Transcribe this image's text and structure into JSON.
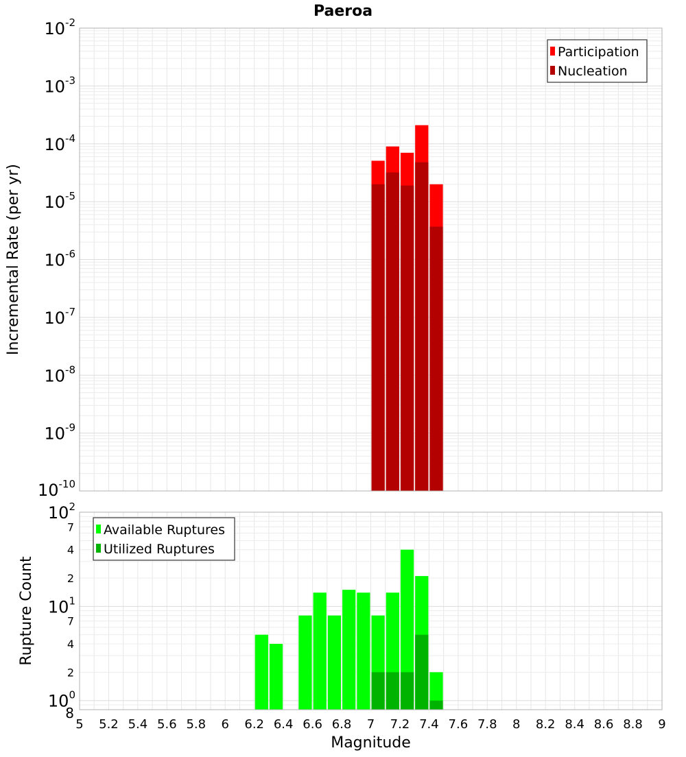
{
  "chart_data": [
    {
      "type": "bar",
      "title": "Paeroa",
      "xlabel": "",
      "ylabel": "Incremental Rate (per yr)",
      "yscale": "log",
      "ylim": [
        1e-10,
        0.01
      ],
      "xlim": [
        5,
        9
      ],
      "y_ticks": [
        {
          "base": "10",
          "exp": "-10",
          "value": 1e-10
        },
        {
          "base": "10",
          "exp": "-9",
          "value": 1e-09
        },
        {
          "base": "10",
          "exp": "-8",
          "value": 1e-08
        },
        {
          "base": "10",
          "exp": "-7",
          "value": 1e-07
        },
        {
          "base": "10",
          "exp": "-6",
          "value": 1e-06
        },
        {
          "base": "10",
          "exp": "-5",
          "value": 1e-05
        },
        {
          "base": "10",
          "exp": "-4",
          "value": 0.0001
        },
        {
          "base": "10",
          "exp": "-3",
          "value": 0.001
        },
        {
          "base": "10",
          "exp": "-2",
          "value": 0.01
        }
      ],
      "legend_position": "top-right",
      "bar_width": 0.1,
      "series": [
        {
          "name": "Participation",
          "color": "#ff0000",
          "x": [
            7.05,
            7.15,
            7.25,
            7.35,
            7.45
          ],
          "values": [
            5.1e-05,
            9e-05,
            7e-05,
            0.00021,
            2e-05
          ]
        },
        {
          "name": "Nucleation",
          "color": "#b30000",
          "x": [
            7.05,
            7.15,
            7.25,
            7.35,
            7.45
          ],
          "values": [
            2e-05,
            3.2e-05,
            1.9e-05,
            4.8e-05,
            3.7e-06
          ]
        }
      ],
      "grid": true
    },
    {
      "type": "bar",
      "title": "",
      "xlabel": "Magnitude",
      "ylabel": "Rupture Count",
      "yscale": "log",
      "ylim": [
        0.8,
        100
      ],
      "xlim": [
        5,
        9
      ],
      "y_ticks": [
        {
          "base": "10",
          "exp": "2",
          "value": 100
        },
        {
          "base": "10",
          "exp": "1",
          "value": 10
        },
        {
          "base": "10",
          "exp": "0",
          "value": 1
        }
      ],
      "y_minor_ticks": [
        {
          "label": "7",
          "value": 70
        },
        {
          "label": "4",
          "value": 40
        },
        {
          "label": "2",
          "value": 20
        },
        {
          "label": "7",
          "value": 7
        },
        {
          "label": "4",
          "value": 4
        },
        {
          "label": "2",
          "value": 2
        },
        {
          "label": "8",
          "value": 0.8
        }
      ],
      "x_ticks": [
        "5",
        "5.2",
        "5.4",
        "5.6",
        "5.8",
        "6",
        "6.2",
        "6.4",
        "6.6",
        "6.8",
        "7",
        "7.2",
        "7.4",
        "7.6",
        "7.8",
        "8",
        "8.2",
        "8.4",
        "8.6",
        "8.8",
        "9"
      ],
      "legend_position": "top-left",
      "bar_width": 0.1,
      "series": [
        {
          "name": "Available Ruptures",
          "color": "#00ff00",
          "x": [
            6.25,
            6.35,
            6.55,
            6.65,
            6.75,
            6.85,
            6.95,
            7.05,
            7.15,
            7.25,
            7.35,
            7.45
          ],
          "values": [
            5,
            4,
            8,
            14,
            8,
            15,
            14,
            8,
            14,
            40,
            21,
            2
          ]
        },
        {
          "name": "Utilized Ruptures",
          "color": "#00b300",
          "x": [
            7.05,
            7.15,
            7.25,
            7.35,
            7.45
          ],
          "values": [
            2,
            2,
            2,
            5,
            1
          ]
        }
      ],
      "grid": true
    }
  ]
}
